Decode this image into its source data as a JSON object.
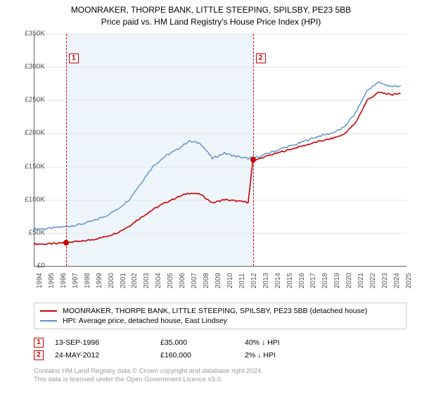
{
  "title": {
    "line1": "MOONRAKER, THORPE BANK, LITTLE STEEPING, SPILSBY, PE23 5BB",
    "line2": "Price paid vs. HM Land Registry's House Price Index (HPI)"
  },
  "chart": {
    "type": "line",
    "x_years": [
      1994,
      1995,
      1996,
      1997,
      1998,
      1999,
      2000,
      2001,
      2002,
      2003,
      2004,
      2005,
      2006,
      2007,
      2008,
      2009,
      2010,
      2011,
      2012,
      2013,
      2014,
      2015,
      2016,
      2017,
      2018,
      2019,
      2020,
      2021,
      2022,
      2023,
      2024,
      2025
    ],
    "xlim": [
      1994,
      2025.3
    ],
    "ylim": [
      0,
      350
    ],
    "y_ticks": [
      0,
      50,
      100,
      150,
      200,
      250,
      300,
      350
    ],
    "y_tick_labels": [
      "£0",
      "£50K",
      "£100K",
      "£150K",
      "£200K",
      "£250K",
      "£300K",
      "£350K"
    ],
    "grid_color": "#e6e6e6",
    "axis_color": "#666666",
    "background_color": "#ffffff",
    "shaded_band": {
      "x_from": 1996.7,
      "x_to": 2012.4,
      "fill": "#eef5fb"
    },
    "vlines": [
      {
        "x": 1996.7,
        "color": "#cc0000",
        "dash": "4,3"
      },
      {
        "x": 2012.4,
        "color": "#cc0000",
        "dash": "4,3"
      }
    ],
    "series": [
      {
        "name": "price_paid",
        "label": "MOONRAKER, THORPE BANK, LITTLE STEEPING, SPILSBY, PE23 5BB (detached house)",
        "color": "#cc0000",
        "line_width": 1.6,
        "x": [
          1994,
          1995,
          1996,
          1996.7,
          1997,
          1998,
          1999,
          2000,
          2001,
          2002,
          2003,
          2004,
          2005,
          2006,
          2007,
          2008,
          2009,
          2010,
          2011,
          2012,
          2012.4,
          2013,
          2014,
          2015,
          2016,
          2017,
          2018,
          2019,
          2020,
          2021,
          2022,
          2023,
          2024,
          2024.8
        ],
        "y": [
          33,
          33,
          34,
          35,
          36,
          37,
          40,
          44,
          50,
          60,
          73,
          85,
          95,
          103,
          110,
          108,
          95,
          100,
          98,
          96,
          160,
          162,
          168,
          173,
          178,
          183,
          188,
          192,
          198,
          215,
          250,
          262,
          258,
          260
        ]
      },
      {
        "name": "hpi",
        "label": "HPI: Average price, detached house, East Lindsey",
        "color": "#5b8fc7",
        "line_width": 1.4,
        "x": [
          1994,
          1995,
          1996,
          1997,
          1998,
          1999,
          2000,
          2001,
          2002,
          2003,
          2004,
          2005,
          2006,
          2007,
          2008,
          2009,
          2010,
          2011,
          2012,
          2013,
          2014,
          2015,
          2016,
          2017,
          2018,
          2019,
          2020,
          2021,
          2022,
          2023,
          2024,
          2024.8
        ],
        "y": [
          56,
          56,
          58,
          60,
          63,
          68,
          75,
          85,
          100,
          125,
          150,
          165,
          175,
          188,
          185,
          162,
          170,
          165,
          162,
          165,
          172,
          178,
          183,
          190,
          196,
          200,
          208,
          230,
          265,
          277,
          270,
          272
        ]
      }
    ],
    "sale_markers": [
      {
        "n": 1,
        "x": 1996.7,
        "y": 35,
        "box_y": 320,
        "color": "#cc0000"
      },
      {
        "n": 2,
        "x": 2012.4,
        "y": 160,
        "box_y": 320,
        "color": "#cc0000"
      }
    ]
  },
  "legend": {
    "series": [
      {
        "color": "#cc0000",
        "label": "MOONRAKER, THORPE BANK, LITTLE STEEPING, SPILSBY, PE23 5BB (detached house)"
      },
      {
        "color": "#5b8fc7",
        "label": "HPI: Average price, detached house, East Lindsey"
      }
    ]
  },
  "sales": [
    {
      "n": 1,
      "date": "13-SEP-1996",
      "price": "£35,000",
      "delta": "40% ↓ HPI",
      "color": "#cc0000"
    },
    {
      "n": 2,
      "date": "24-MAY-2012",
      "price": "£160,000",
      "delta": "2% ↓ HPI",
      "color": "#cc0000"
    }
  ],
  "attribution": {
    "line1": "Contains HM Land Registry data © Crown copyright and database right 2024.",
    "line2": "This data is licensed under the Open Government Licence v3.0."
  },
  "label_fontsize": 10,
  "title_fontsize": 12
}
